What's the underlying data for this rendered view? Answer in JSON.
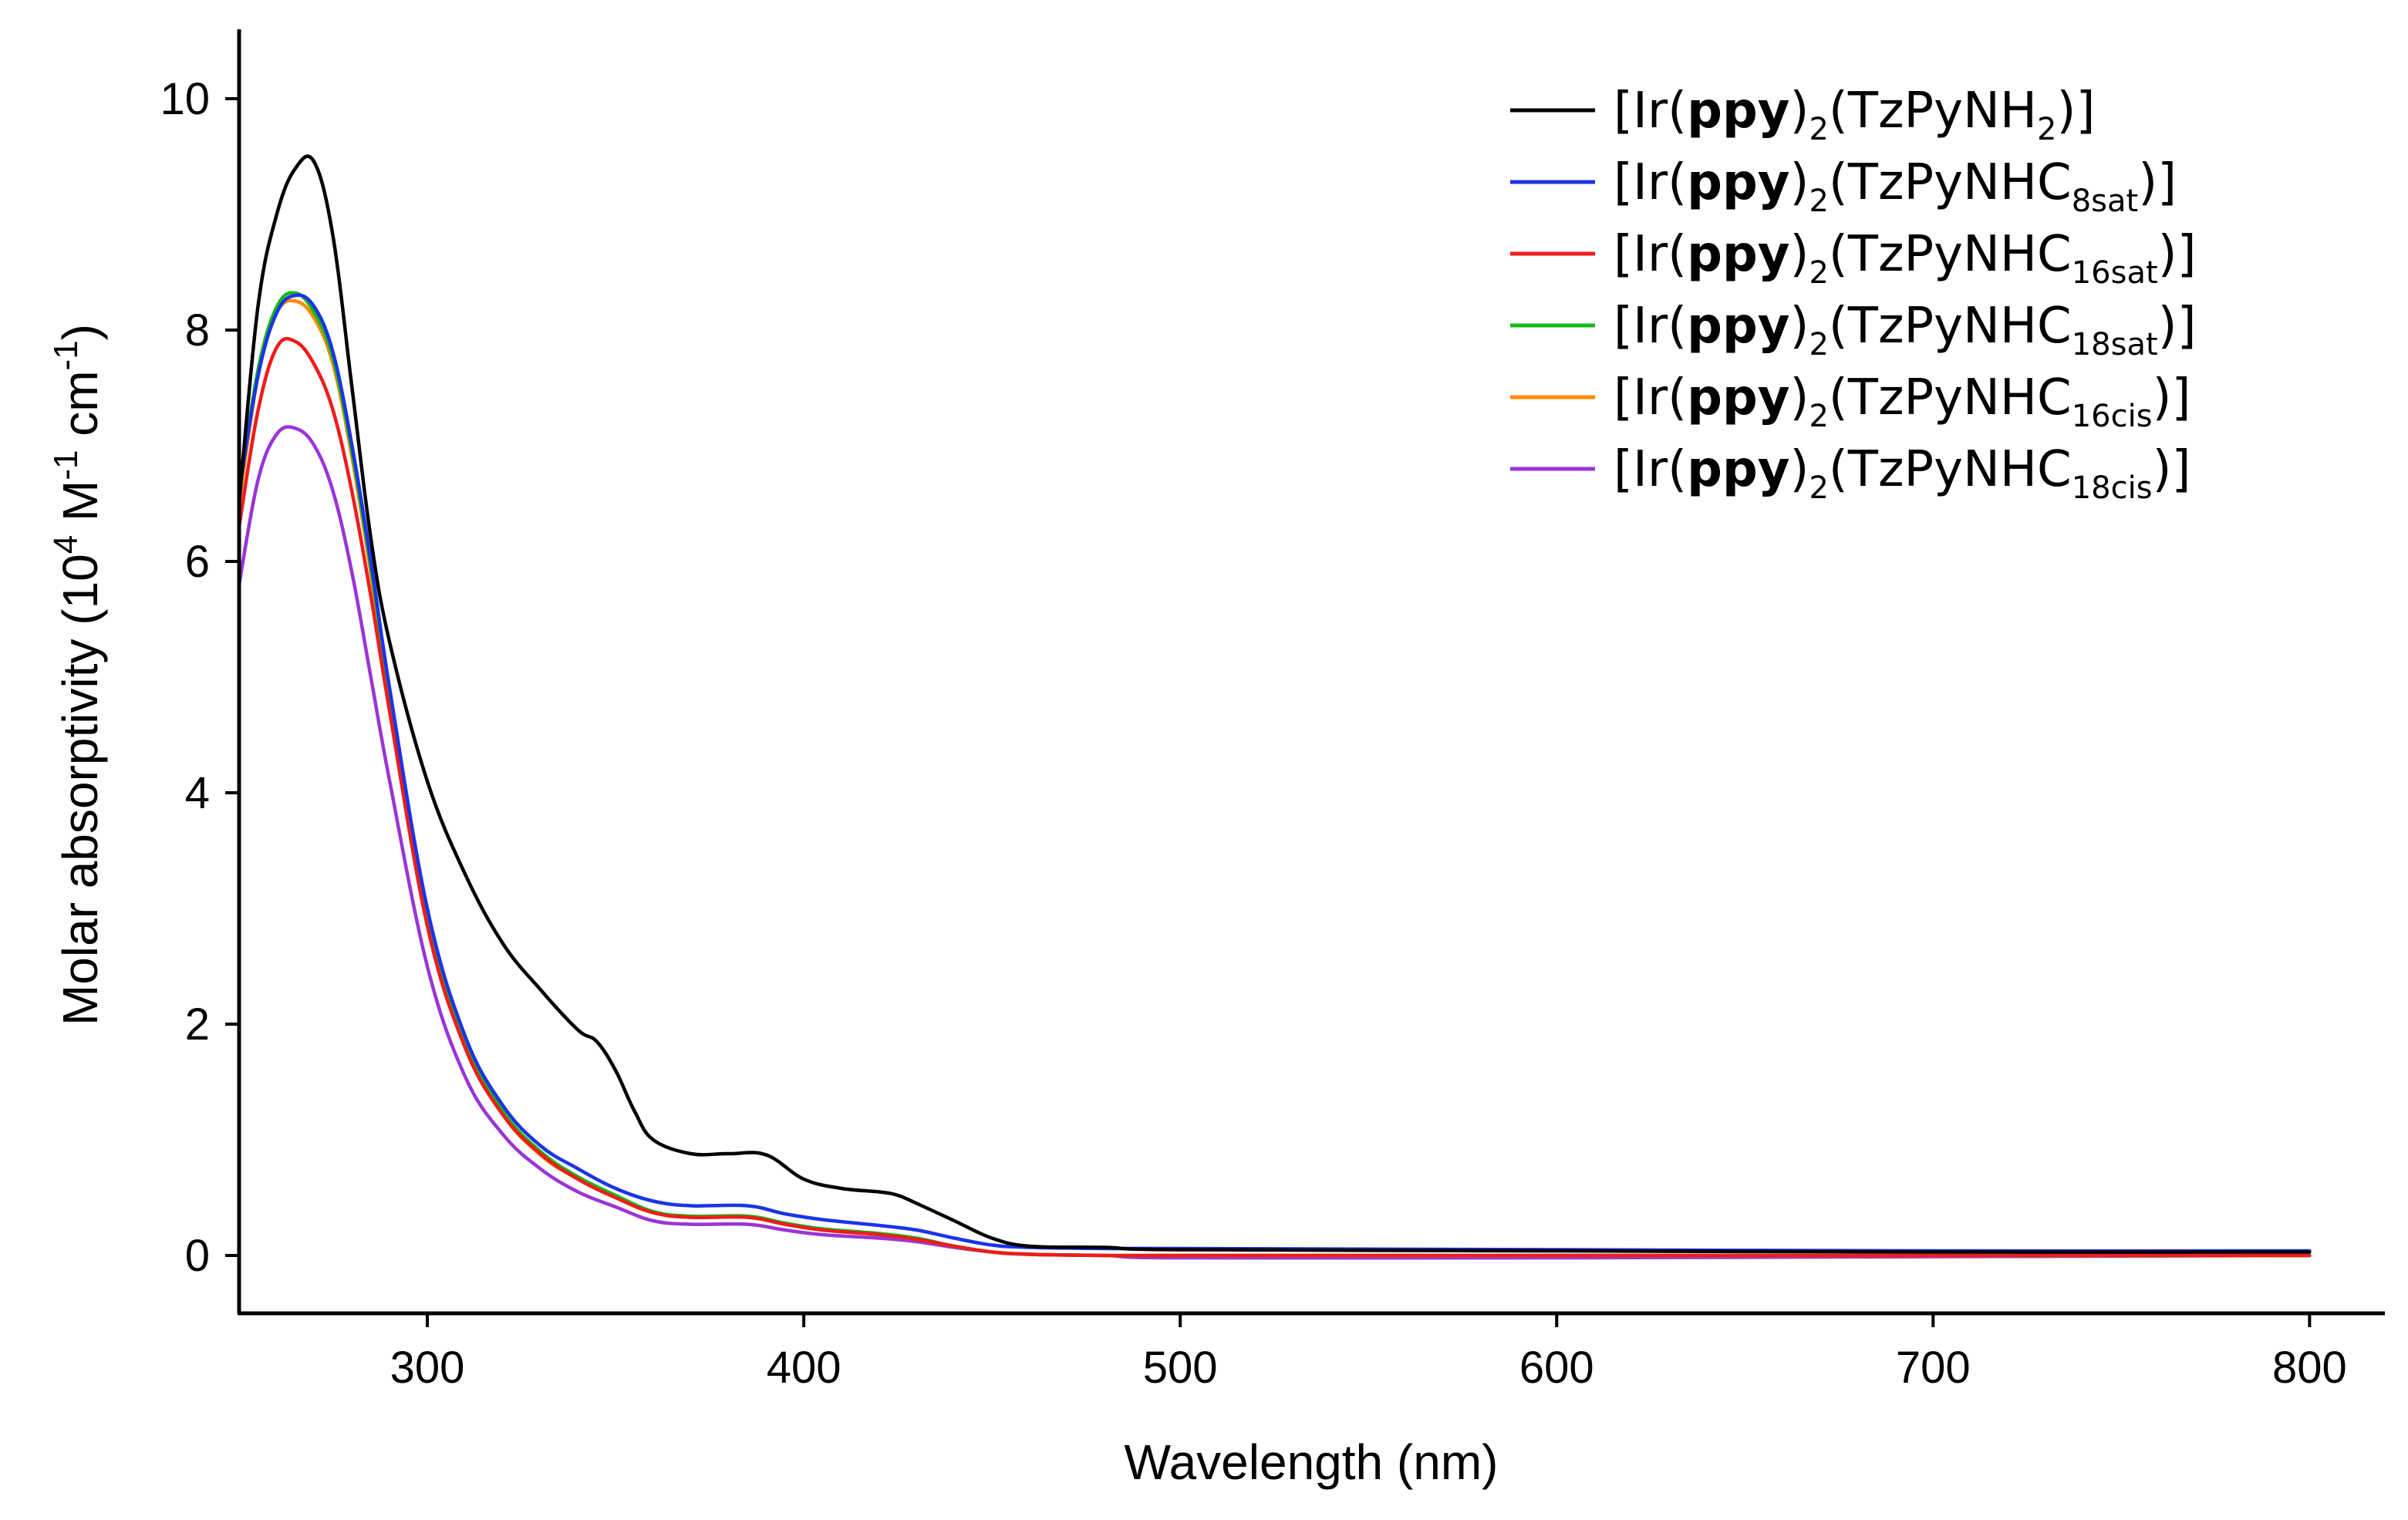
{
  "chart_data": {
    "type": "line",
    "title": "",
    "xlabel": "Wavelength (nm)",
    "ylabel": {
      "main": "Molar absorptivity (10",
      "exp1": "4",
      "mid": " M",
      "exp2": "-1",
      "mid2": " cm",
      "exp3": "-1",
      "end": ")"
    },
    "xlim": [
      250,
      820
    ],
    "ylim": [
      -0.5,
      10.6
    ],
    "xticks": [
      300,
      400,
      500,
      600,
      700,
      800
    ],
    "yticks": [
      0,
      2,
      4,
      6,
      8,
      10
    ],
    "legend_position": "top-right",
    "series": [
      {
        "name": "[Ir(ppy)2(TzPyNH2)]",
        "label": {
          "pre": "[Ir(",
          "bold": "ppy",
          "mid": ")",
          "sub1": "2",
          "mid2": "(TzPyNH",
          "sub2": "2",
          "end": ")]"
        },
        "color": "#000000",
        "x": [
          250,
          255,
          260,
          265,
          270,
          275,
          280,
          285,
          290,
          300,
          310,
          320,
          330,
          340,
          345,
          350,
          355,
          360,
          370,
          380,
          390,
          400,
          410,
          420,
          425,
          430,
          440,
          450,
          460,
          480,
          500,
          600,
          700,
          800
        ],
        "y": [
          6.5,
          8.2,
          9.0,
          9.4,
          9.45,
          8.8,
          7.5,
          6.2,
          5.3,
          4.1,
          3.3,
          2.7,
          2.3,
          1.95,
          1.85,
          1.6,
          1.25,
          1.0,
          0.88,
          0.88,
          0.87,
          0.66,
          0.58,
          0.55,
          0.52,
          0.45,
          0.3,
          0.15,
          0.08,
          0.07,
          0.05,
          0.04,
          0.03,
          0.03
        ]
      },
      {
        "name": "[Ir(ppy)2(TzPyNHC8sat)]",
        "label": {
          "pre": "[Ir(",
          "bold": "ppy",
          "mid": ")",
          "sub1": "2",
          "mid2": "(TzPyNHC",
          "sub2": "8sat",
          "end": ")]"
        },
        "color": "#1a34e6",
        "x": [
          250,
          255,
          260,
          265,
          270,
          275,
          280,
          285,
          290,
          300,
          310,
          320,
          330,
          340,
          350,
          360,
          370,
          385,
          395,
          405,
          420,
          430,
          440,
          450,
          460,
          480,
          500,
          600,
          700,
          800
        ],
        "y": [
          6.6,
          7.6,
          8.15,
          8.3,
          8.2,
          7.8,
          7.0,
          6.0,
          4.9,
          3.0,
          1.9,
          1.3,
          0.95,
          0.75,
          0.58,
          0.47,
          0.43,
          0.43,
          0.36,
          0.31,
          0.26,
          0.22,
          0.15,
          0.09,
          0.07,
          0.06,
          0.06,
          0.05,
          0.04,
          0.04
        ]
      },
      {
        "name": "[Ir(ppy)2(TzPyNHC16sat)]",
        "label": {
          "pre": "[Ir(",
          "bold": "ppy",
          "mid": ")",
          "sub1": "2",
          "mid2": "(TzPyNHC",
          "sub2": "16sat",
          "end": ")]"
        },
        "color": "#ee1c1c",
        "x": [
          250,
          255,
          260,
          265,
          270,
          275,
          280,
          285,
          290,
          300,
          310,
          320,
          330,
          340,
          350,
          360,
          370,
          385,
          395,
          405,
          420,
          430,
          440,
          450,
          460,
          480,
          500,
          600,
          700,
          800
        ],
        "y": [
          6.3,
          7.3,
          7.85,
          7.9,
          7.7,
          7.3,
          6.6,
          5.7,
          4.7,
          2.85,
          1.8,
          1.22,
          0.88,
          0.66,
          0.5,
          0.37,
          0.33,
          0.33,
          0.27,
          0.22,
          0.18,
          0.14,
          0.08,
          0.03,
          0.01,
          0.0,
          0.0,
          0.0,
          0.0,
          0.0
        ]
      },
      {
        "name": "[Ir(ppy)2(TzPyNHC18sat)]",
        "label": {
          "pre": "[Ir(",
          "bold": "ppy",
          "mid": ")",
          "sub1": "2",
          "mid2": "(TzPyNHC",
          "sub2": "18sat",
          "end": ")]"
        },
        "color": "#16b816",
        "x": [
          250,
          255,
          260,
          265,
          270,
          275,
          280,
          285,
          290,
          300,
          310,
          320,
          330,
          340,
          350,
          360,
          370,
          385,
          395,
          405,
          420,
          430,
          440,
          450,
          460,
          480,
          500,
          600,
          700,
          800
        ],
        "y": [
          6.6,
          7.65,
          8.2,
          8.32,
          8.15,
          7.75,
          6.95,
          5.95,
          4.85,
          2.95,
          1.85,
          1.25,
          0.9,
          0.68,
          0.52,
          0.38,
          0.34,
          0.34,
          0.28,
          0.23,
          0.19,
          0.15,
          0.08,
          0.03,
          0.01,
          0.0,
          0.0,
          0.0,
          0.0,
          0.0
        ]
      },
      {
        "name": "[Ir(ppy)2(TzPyNHC16cis)]",
        "label": {
          "pre": "[Ir(",
          "bold": "ppy",
          "mid": ")",
          "sub1": "2",
          "mid2": "(TzPyNHC",
          "sub2": "16cis",
          "end": ")]"
        },
        "color": "#ff8a00",
        "x": [
          250,
          255,
          260,
          265,
          270,
          275,
          280,
          285,
          290,
          300,
          310,
          320,
          330,
          340,
          350,
          360,
          370,
          385,
          395,
          405,
          420,
          430,
          440,
          450,
          460,
          480,
          500,
          600,
          700,
          800
        ],
        "y": [
          6.5,
          7.6,
          8.15,
          8.25,
          8.1,
          7.7,
          6.9,
          5.9,
          4.8,
          2.9,
          1.82,
          1.22,
          0.87,
          0.66,
          0.5,
          0.37,
          0.33,
          0.33,
          0.27,
          0.22,
          0.18,
          0.14,
          0.08,
          0.03,
          0.01,
          0.0,
          0.0,
          0.0,
          0.0,
          0.0
        ]
      },
      {
        "name": "[Ir(ppy)2(TzPyNHC18cis)]",
        "label": {
          "pre": "[Ir(",
          "bold": "ppy",
          "mid": ")",
          "sub1": "2",
          "mid2": "(TzPyNHC",
          "sub2": "18cis",
          "end": ")]"
        },
        "color": "#9a35d6",
        "x": [
          250,
          255,
          260,
          265,
          270,
          275,
          280,
          285,
          290,
          300,
          310,
          320,
          330,
          340,
          350,
          360,
          370,
          385,
          395,
          405,
          420,
          430,
          440,
          450,
          460,
          480,
          500,
          600,
          700,
          800
        ],
        "y": [
          5.8,
          6.7,
          7.1,
          7.15,
          7.0,
          6.6,
          5.9,
          5.0,
          4.1,
          2.5,
          1.55,
          1.05,
          0.75,
          0.55,
          0.42,
          0.3,
          0.27,
          0.27,
          0.22,
          0.18,
          0.15,
          0.12,
          0.07,
          0.03,
          0.01,
          0.0,
          -0.02,
          -0.02,
          -0.01,
          0.0
        ]
      }
    ]
  }
}
